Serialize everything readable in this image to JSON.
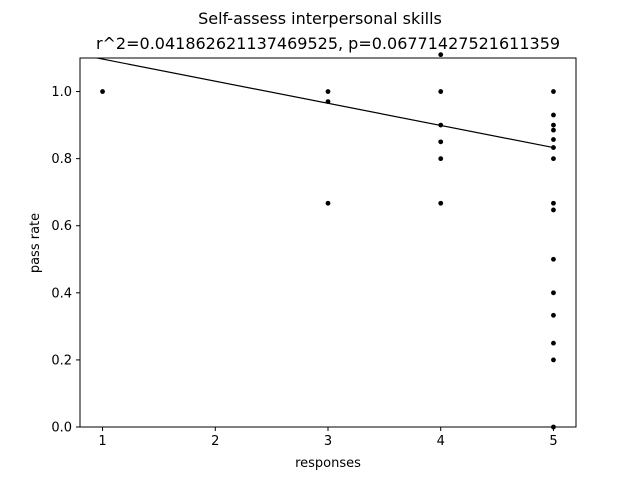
{
  "chart_data": {
    "type": "scatter",
    "title": "Self-assess interpersonal skills",
    "subtitle": "r^2=0.041862621137469525, p=0.06771427521611359",
    "xlabel": "responses",
    "ylabel": "pass rate",
    "xlim": [
      0.8,
      5.2
    ],
    "ylim": [
      0.0,
      1.1
    ],
    "xticks": [
      1,
      2,
      3,
      4,
      5
    ],
    "yticks": [
      0.0,
      0.2,
      0.4,
      0.6,
      0.8,
      1.0
    ],
    "grid": false,
    "points": [
      {
        "x": 1,
        "y": 1.0
      },
      {
        "x": 3,
        "y": 1.0
      },
      {
        "x": 3,
        "y": 0.97
      },
      {
        "x": 3,
        "y": 0.667
      },
      {
        "x": 4,
        "y": 1.11
      },
      {
        "x": 4,
        "y": 1.0
      },
      {
        "x": 4,
        "y": 0.9
      },
      {
        "x": 4,
        "y": 0.85
      },
      {
        "x": 4,
        "y": 0.8
      },
      {
        "x": 4,
        "y": 0.667
      },
      {
        "x": 5,
        "y": 1.0
      },
      {
        "x": 5,
        "y": 0.93
      },
      {
        "x": 5,
        "y": 0.9
      },
      {
        "x": 5,
        "y": 0.885
      },
      {
        "x": 5,
        "y": 0.857
      },
      {
        "x": 5,
        "y": 0.833
      },
      {
        "x": 5,
        "y": 0.8
      },
      {
        "x": 5,
        "y": 0.667
      },
      {
        "x": 5,
        "y": 0.647
      },
      {
        "x": 5,
        "y": 0.5
      },
      {
        "x": 5,
        "y": 0.4
      },
      {
        "x": 5,
        "y": 0.333
      },
      {
        "x": 5,
        "y": 0.25
      },
      {
        "x": 5,
        "y": 0.2
      },
      {
        "x": 5,
        "y": 0.0
      }
    ],
    "regression_line": {
      "x": [
        0.8,
        5.0
      ],
      "y": [
        1.11,
        0.833
      ]
    },
    "colors": {
      "points": "#000000",
      "line": "#000000"
    }
  }
}
